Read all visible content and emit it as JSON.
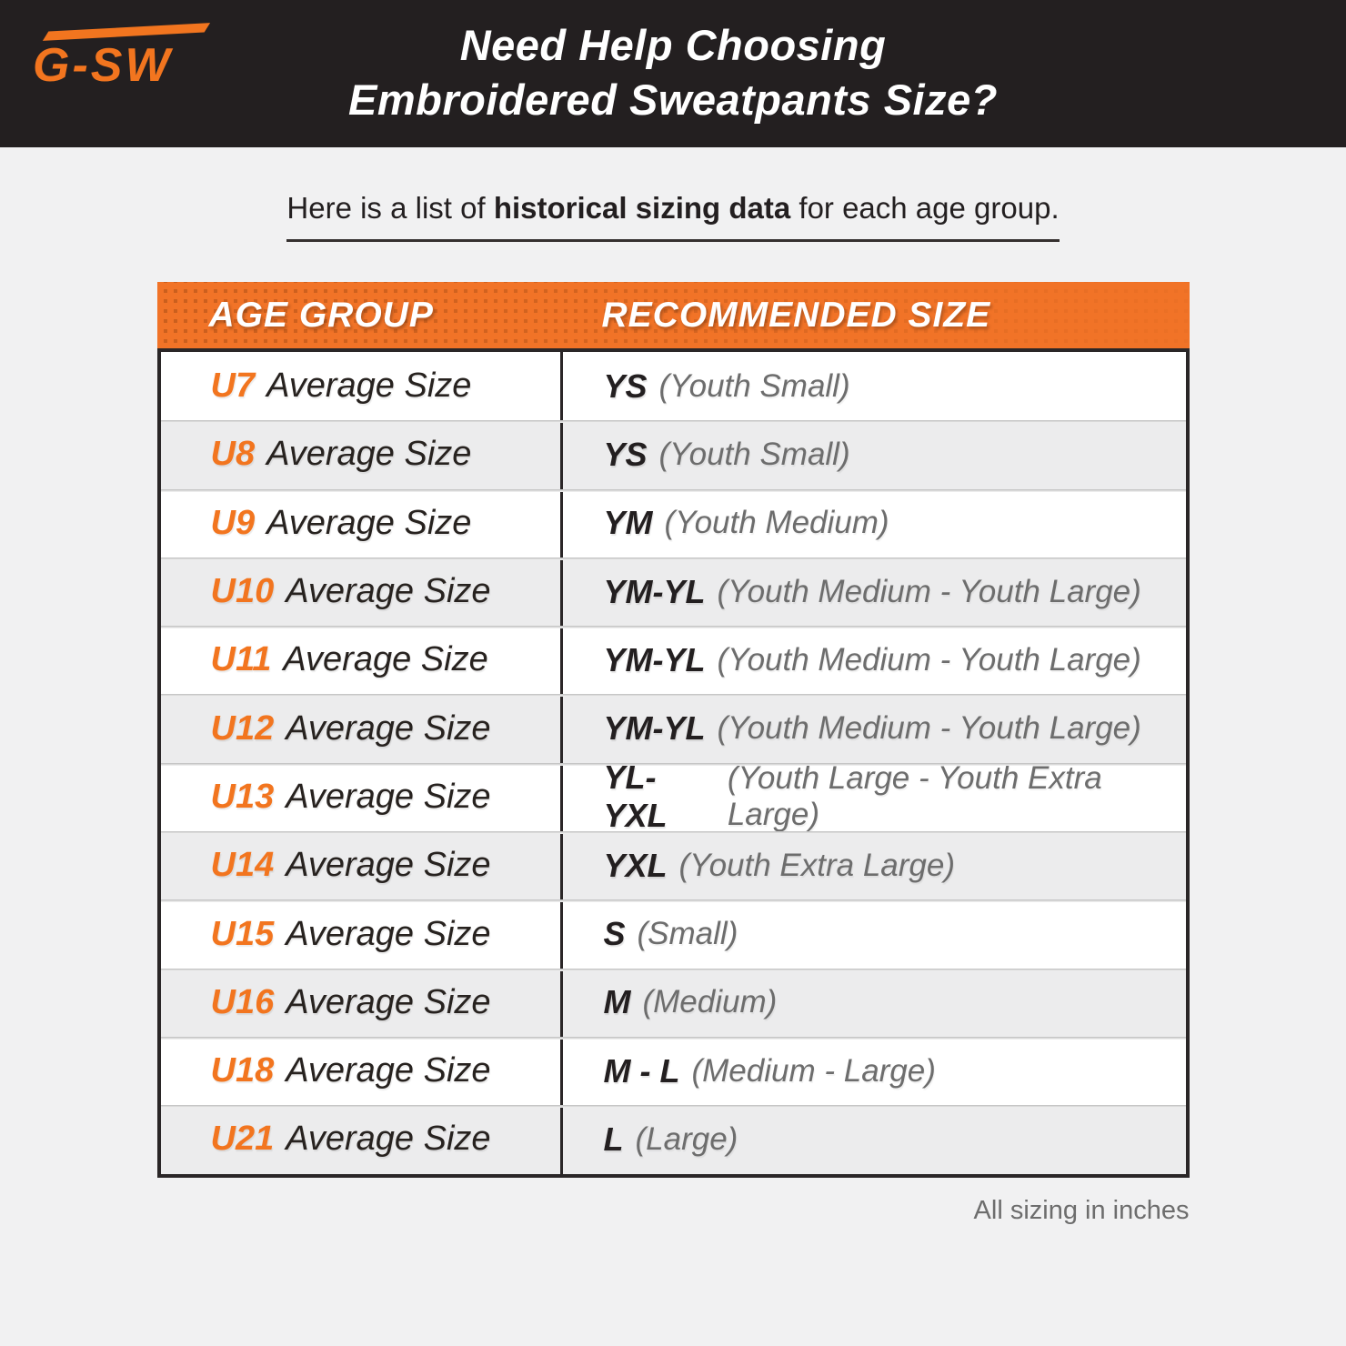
{
  "page": {
    "background": "#f1f1f2"
  },
  "header": {
    "background": "#231f20",
    "logo_text": "G-SW",
    "logo_color": "#f2751f",
    "title_line1": "Need Help Choosing",
    "title_line2": "Embroidered Sweatpants Size?"
  },
  "intro": {
    "prefix": "Here is a list of ",
    "highlight": "historical sizing data",
    "suffix": " for each age group."
  },
  "table": {
    "accent_color": "#f2751f",
    "header_background": "#f17327",
    "columns": [
      "AGE GROUP",
      "RECOMMENDED SIZE"
    ],
    "rows": [
      {
        "age_group": "U7",
        "label": "Average Size",
        "size_code": "YS",
        "size_name": "(Youth Small)"
      },
      {
        "age_group": "U8",
        "label": "Average Size",
        "size_code": "YS",
        "size_name": "(Youth Small)"
      },
      {
        "age_group": "U9",
        "label": "Average Size",
        "size_code": "YM",
        "size_name": "(Youth Medium)"
      },
      {
        "age_group": "U10",
        "label": "Average Size",
        "size_code": "YM-YL",
        "size_name": "(Youth Medium - Youth Large)"
      },
      {
        "age_group": "U11",
        "label": "Average Size",
        "size_code": "YM-YL",
        "size_name": "(Youth Medium - Youth Large)"
      },
      {
        "age_group": "U12",
        "label": "Average Size",
        "size_code": "YM-YL",
        "size_name": "(Youth Medium - Youth Large)"
      },
      {
        "age_group": "U13",
        "label": "Average Size",
        "size_code": "YL-YXL",
        "size_name": "(Youth Large - Youth Extra Large)"
      },
      {
        "age_group": "U14",
        "label": "Average Size",
        "size_code": "YXL",
        "size_name": "(Youth Extra Large)"
      },
      {
        "age_group": "U15",
        "label": "Average Size",
        "size_code": "S",
        "size_name": "(Small)"
      },
      {
        "age_group": "U16",
        "label": "Average Size",
        "size_code": "M",
        "size_name": "(Medium)"
      },
      {
        "age_group": "U18",
        "label": "Average Size",
        "size_code": "M - L",
        "size_name": "(Medium - Large)"
      },
      {
        "age_group": "U21",
        "label": "Average Size",
        "size_code": "L",
        "size_name": "(Large)"
      }
    ]
  },
  "footnote": "All sizing in inches"
}
